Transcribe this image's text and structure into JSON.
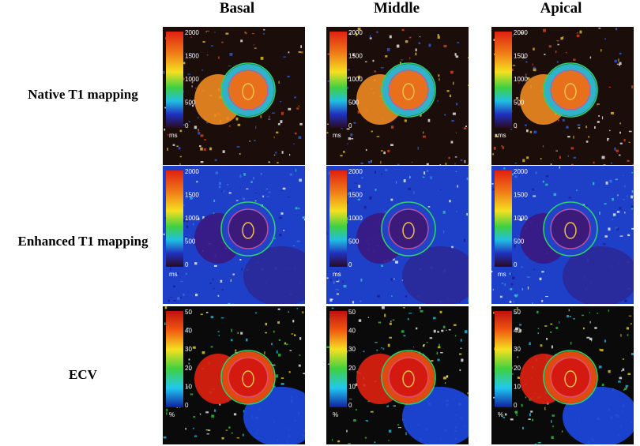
{
  "columns": [
    "Basal",
    "Middle",
    "Apical"
  ],
  "rows": [
    "Native T1 mapping",
    "Enhanced T1 mapping",
    "ECV"
  ],
  "t1_scale": {
    "ticks": [
      "2000",
      "1500",
      "1000",
      "500",
      "0"
    ],
    "unit": "ms"
  },
  "ecv_scale": {
    "ticks": [
      "50",
      "40",
      "30",
      "20",
      "10",
      "0"
    ],
    "unit": "%"
  },
  "colors": {
    "background": "#ffffff",
    "contour_epi": "#2cd36b",
    "contour_endo": "#e04b8a",
    "contour_blood": "#f2c84b"
  }
}
